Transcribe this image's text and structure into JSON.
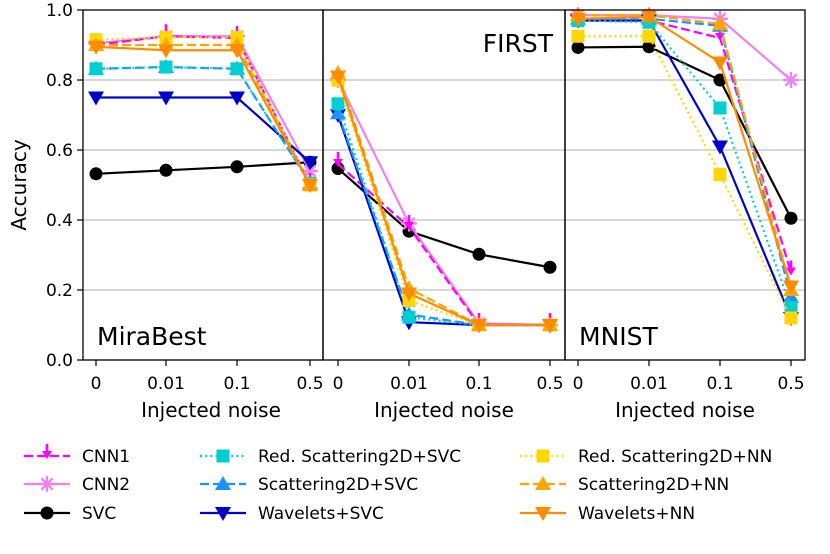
{
  "chart_data": {
    "type": "line",
    "ylabel": "Accuracy",
    "ylim": [
      0.0,
      1.0
    ],
    "yticks": [
      "0.0",
      "0.2",
      "0.4",
      "0.6",
      "0.8",
      "1.0"
    ],
    "xlabel": "Injected noise",
    "xticks": [
      "0",
      "0.01",
      "0.1",
      "0.5"
    ],
    "grid": "horizontal",
    "legend_placement": "bottom",
    "panels": [
      {
        "label": "MiraBest",
        "label_position": "bottom-left",
        "series": [
          {
            "name": "CNN1",
            "values": [
              0.9,
              0.925,
              0.92,
              0.5
            ]
          },
          {
            "name": "CNN2",
            "values": [
              0.905,
              0.925,
              0.925,
              0.54
            ]
          },
          {
            "name": "SVC",
            "values": [
              0.532,
              0.542,
              0.552,
              0.565
            ]
          },
          {
            "name": "Red. Scattering2D+SVC",
            "values": [
              0.832,
              0.837,
              0.832,
              0.505
            ]
          },
          {
            "name": "Scattering2D+SVC",
            "values": [
              0.832,
              0.837,
              0.832,
              0.505
            ]
          },
          {
            "name": "Wavelets+SVC",
            "values": [
              0.75,
              0.75,
              0.75,
              0.565
            ]
          },
          {
            "name": "Red. Scattering2D+NN",
            "values": [
              0.915,
              0.922,
              0.922,
              0.5
            ]
          },
          {
            "name": "Scattering2D+NN",
            "values": [
              0.9,
              0.9,
              0.9,
              0.5
            ]
          },
          {
            "name": "Wavelets+NN",
            "values": [
              0.895,
              0.885,
              0.885,
              0.5
            ]
          }
        ]
      },
      {
        "label": "FIRST",
        "label_position": "top-right",
        "series": [
          {
            "name": "CNN1",
            "values": [
              0.56,
              0.38,
              0.1,
              0.1
            ]
          },
          {
            "name": "CNN2",
            "values": [
              0.8,
              0.39,
              0.105,
              0.1
            ]
          },
          {
            "name": "SVC",
            "values": [
              0.547,
              0.368,
              0.302,
              0.265
            ]
          },
          {
            "name": "Red. Scattering2D+SVC",
            "values": [
              0.732,
              0.122,
              0.1,
              0.1
            ]
          },
          {
            "name": "Scattering2D+SVC",
            "values": [
              0.705,
              0.13,
              0.1,
              0.1
            ]
          },
          {
            "name": "Wavelets+SVC",
            "values": [
              0.7,
              0.108,
              0.1,
              0.1
            ]
          },
          {
            "name": "Red. Scattering2D+NN",
            "values": [
              0.8,
              0.17,
              0.1,
              0.1
            ]
          },
          {
            "name": "Scattering2D+NN",
            "values": [
              0.82,
              0.205,
              0.1,
              0.1
            ]
          },
          {
            "name": "Wavelets+NN",
            "values": [
              0.81,
              0.19,
              0.1,
              0.1
            ]
          }
        ]
      },
      {
        "label": "MNIST",
        "label_position": "bottom-left",
        "series": [
          {
            "name": "CNN1",
            "values": [
              0.97,
              0.97,
              0.92,
              0.25
            ]
          },
          {
            "name": "CNN2",
            "values": [
              0.985,
              0.985,
              0.975,
              0.8
            ]
          },
          {
            "name": "SVC",
            "values": [
              0.893,
              0.895,
              0.8,
              0.405
            ]
          },
          {
            "name": "Red. Scattering2D+SVC",
            "values": [
              0.97,
              0.965,
              0.72,
              0.15
            ]
          },
          {
            "name": "Scattering2D+SVC",
            "values": [
              0.975,
              0.975,
              0.955,
              0.18
            ]
          },
          {
            "name": "Wavelets+SVC",
            "values": [
              0.97,
              0.97,
              0.61,
              0.12
            ]
          },
          {
            "name": "Red. Scattering2D+NN",
            "values": [
              0.925,
              0.925,
              0.53,
              0.12
            ]
          },
          {
            "name": "Scattering2D+NN",
            "values": [
              0.985,
              0.985,
              0.96,
              0.2
            ]
          },
          {
            "name": "Wavelets+NN",
            "values": [
              0.975,
              0.98,
              0.85,
              0.21
            ]
          }
        ]
      }
    ],
    "legend": [
      {
        "name": "CNN1",
        "color": "#ff00ff",
        "linestyle": "dashed",
        "marker": "arrow-down"
      },
      {
        "name": "CNN2",
        "color": "#ee82ee",
        "linestyle": "solid",
        "marker": "star"
      },
      {
        "name": "SVC",
        "color": "#000000",
        "linestyle": "solid",
        "marker": "circle"
      },
      {
        "name": "Red. Scattering2D+SVC",
        "color": "#00ced1",
        "linestyle": "dotted",
        "marker": "square"
      },
      {
        "name": "Scattering2D+SVC",
        "color": "#1e90ff",
        "linestyle": "dashed",
        "marker": "triangle-up"
      },
      {
        "name": "Wavelets+SVC",
        "color": "#0000cd",
        "linestyle": "solid",
        "marker": "triangle-down"
      },
      {
        "name": "Red. Scattering2D+NN",
        "color": "#ffd700",
        "linestyle": "dotted",
        "marker": "square"
      },
      {
        "name": "Scattering2D+NN",
        "color": "#ffa500",
        "linestyle": "dashed",
        "marker": "triangle-up"
      },
      {
        "name": "Wavelets+NN",
        "color": "#ff8c00",
        "linestyle": "solid",
        "marker": "triangle-down"
      }
    ]
  }
}
